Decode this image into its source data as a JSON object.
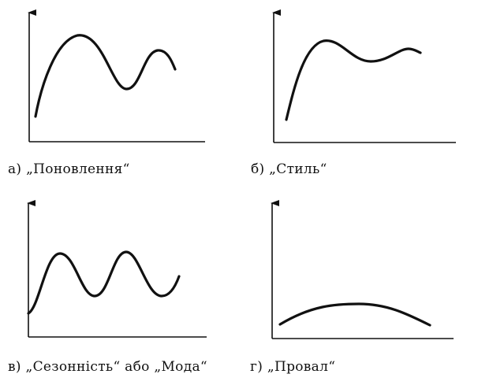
{
  "panels": [
    {
      "id": "a",
      "caption": "а)  „Поновлення“"
    },
    {
      "id": "b",
      "caption": "б)  „Стиль“"
    },
    {
      "id": "c",
      "caption": "в)  „Сезонність“  або  „Мода“"
    },
    {
      "id": "d",
      "caption": "г)  „Провал“"
    }
  ],
  "colors": {
    "ink": "#111111",
    "background": "#ffffff"
  }
}
